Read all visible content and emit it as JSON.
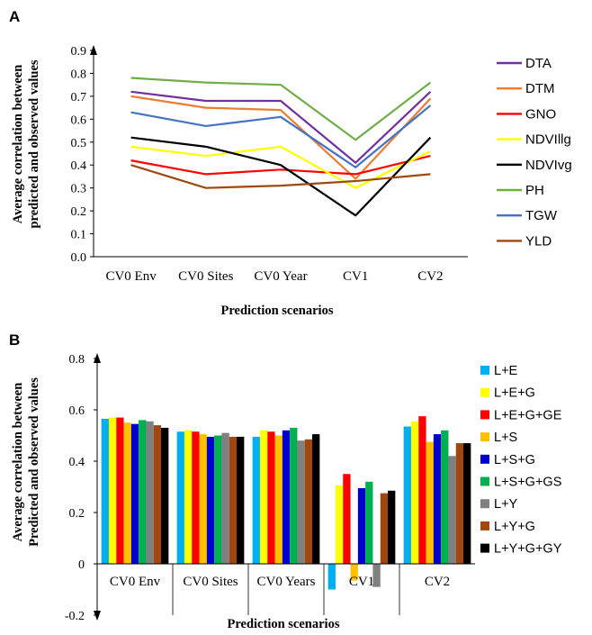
{
  "chart_data": [
    {
      "panel_label": "A",
      "type": "line",
      "categories": [
        "CV0 Env",
        "CV0 Sites",
        "CV0 Year",
        "CV1",
        "CV2"
      ],
      "ylabel_lines": [
        "Average correlation between",
        "predicted and observed values"
      ],
      "xlabel": "Prediction scenarios",
      "ylim": [
        0,
        0.9
      ],
      "yticks": [
        "0.0",
        "0.1",
        "0.2",
        "0.3",
        "0.4",
        "0.5",
        "0.6",
        "0.7",
        "0.8",
        "0.9"
      ],
      "grid": false,
      "legend_position": "right",
      "series": [
        {
          "name": "DTA",
          "color": "#7030A0",
          "values": [
            0.72,
            0.68,
            0.68,
            0.41,
            0.72
          ]
        },
        {
          "name": "DTM",
          "color": "#ED7D31",
          "values": [
            0.7,
            0.65,
            0.64,
            0.34,
            0.69
          ]
        },
        {
          "name": "GNO",
          "color": "#FF0000",
          "values": [
            0.42,
            0.36,
            0.38,
            0.36,
            0.44
          ]
        },
        {
          "name": "NDVIllg",
          "color": "#FFFF00",
          "values": [
            0.48,
            0.44,
            0.48,
            0.3,
            0.46
          ]
        },
        {
          "name": "NDVIvg",
          "color": "#000000",
          "values": [
            0.52,
            0.48,
            0.4,
            0.18,
            0.52
          ]
        },
        {
          "name": "PH",
          "color": "#70AD47",
          "values": [
            0.78,
            0.76,
            0.75,
            0.51,
            0.76
          ]
        },
        {
          "name": "TGW",
          "color": "#4472C4",
          "values": [
            0.63,
            0.57,
            0.61,
            0.39,
            0.66
          ]
        },
        {
          "name": "YLD",
          "color": "#9E480E",
          "values": [
            0.4,
            0.3,
            0.31,
            0.33,
            0.36
          ]
        }
      ]
    },
    {
      "panel_label": "B",
      "type": "bar",
      "categories": [
        "CV0 Env",
        "CV0 Sites",
        "CV0 Years",
        "CV1",
        "CV2"
      ],
      "ylabel_lines": [
        "Average correlation between",
        "Predicted and observed values"
      ],
      "xlabel": "Prediction scenarios",
      "ylim": [
        -0.2,
        0.8
      ],
      "yticks": [
        "-0.2",
        "0",
        "0.2",
        "0.4",
        "0.6",
        "0.8"
      ],
      "grid": false,
      "legend_position": "right",
      "series": [
        {
          "name": "L+E",
          "color": "#00B0F0",
          "values": [
            0.565,
            0.515,
            0.495,
            -0.1,
            0.535
          ]
        },
        {
          "name": "L+E+G",
          "color": "#FFFF00",
          "values": [
            0.57,
            0.52,
            0.52,
            0.305,
            0.555
          ]
        },
        {
          "name": "L+E+G+GE",
          "color": "#FF0000",
          "values": [
            0.57,
            0.515,
            0.515,
            0.35,
            0.575
          ]
        },
        {
          "name": "L+S",
          "color": "#FFC000",
          "values": [
            0.55,
            0.505,
            0.5,
            -0.065,
            0.475
          ]
        },
        {
          "name": "L+S+G",
          "color": "#0000CC",
          "values": [
            0.545,
            0.495,
            0.52,
            0.295,
            0.505
          ]
        },
        {
          "name": "L+S+G+GS",
          "color": "#00B050",
          "values": [
            0.56,
            0.5,
            0.53,
            0.32,
            0.52
          ]
        },
        {
          "name": "L+Y",
          "color": "#808080",
          "values": [
            0.555,
            0.51,
            0.48,
            -0.09,
            0.42
          ]
        },
        {
          "name": "L+Y+G",
          "color": "#A0460F",
          "values": [
            0.54,
            0.495,
            0.485,
            0.275,
            0.47
          ]
        },
        {
          "name": "L+Y+G+GY",
          "color": "#000000",
          "values": [
            0.53,
            0.495,
            0.505,
            0.285,
            0.47
          ]
        }
      ]
    }
  ]
}
